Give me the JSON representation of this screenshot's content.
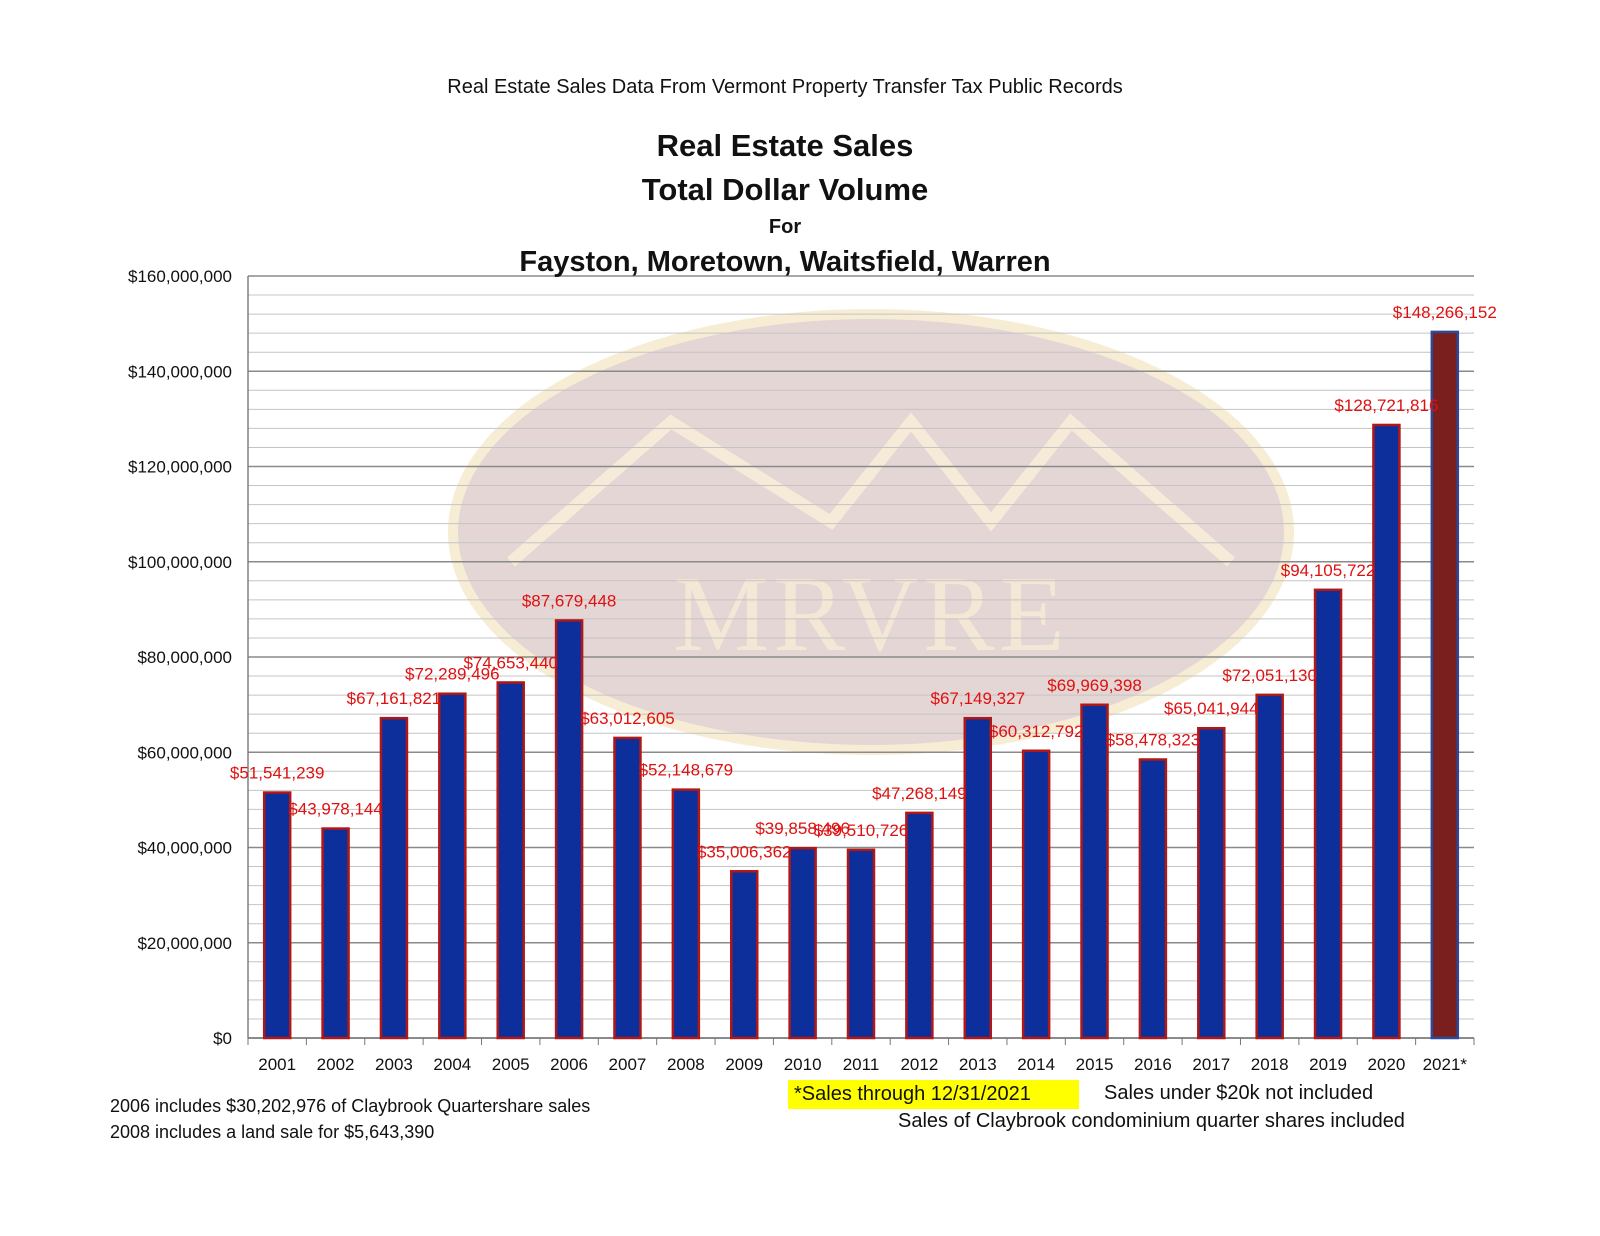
{
  "header": {
    "source": "Real Estate Sales Data From Vermont Property Transfer Tax Public Records"
  },
  "chart_data": {
    "type": "bar",
    "title_lines": [
      "Real Estate Sales",
      "Total Dollar Volume",
      "For",
      "Fayston, Moretown, Waitsfield, Warren"
    ],
    "categories": [
      "2001",
      "2002",
      "2003",
      "2004",
      "2005",
      "2006",
      "2007",
      "2008",
      "2009",
      "2010",
      "2011",
      "2012",
      "2013",
      "2014",
      "2015",
      "2016",
      "2017",
      "2018",
      "2019",
      "2020",
      "2021*"
    ],
    "values": [
      51541239,
      43978144,
      67161821,
      72289496,
      74653440,
      87679448,
      63012605,
      52148679,
      35006362,
      39858496,
      39510726,
      47268149,
      67149327,
      60312792,
      69969398,
      58478323,
      65041944,
      72051130,
      94105722,
      128721816,
      148266152
    ],
    "data_labels": [
      "$51,541,239",
      "$43,978,144",
      "$67,161,821",
      "$72,289,496",
      "$74,653,440",
      "$87,679,448",
      "$63,012,605",
      "$52,148,679",
      "$35,006,362",
      "$39,858,496",
      "$39,510,726",
      "$47,268,149",
      "$67,149,327",
      "$60,312,792",
      "$69,969,398",
      "$58,478,323",
      "$65,041,944",
      "$72,051,130",
      "$94,105,722",
      "$128,721,816",
      "$148,266,152"
    ],
    "y_ticks": [
      "$0",
      "$20,000,000",
      "$40,000,000",
      "$60,000,000",
      "$80,000,000",
      "$100,000,000",
      "$120,000,000",
      "$140,000,000",
      "$160,000,000"
    ],
    "ylim": [
      0,
      160000000
    ],
    "y_major_step": 20000000,
    "y_minor_step": 4000000,
    "grid": true,
    "legend": "none",
    "colors": {
      "bar_fill": "#0d2f9c",
      "bar_edge": "#b01818",
      "highlight_bar_fill": "#7a1e1e",
      "highlight_bar_edge": "#2a4a9c",
      "data_label": "#e01010",
      "major_grid": "#8a8a8a",
      "minor_grid": "#c4c4c4",
      "watermark": "#dcc9c6",
      "watermark_ring": "#f5e8c8"
    },
    "highlight_index": 20,
    "watermark_text": "MRVRE"
  },
  "notes": {
    "left": [
      "2006 includes $30,202,976 of Claybrook Quartershare sales",
      "2008 includes a land sale for $5,643,390"
    ],
    "highlight": "*Sales through 12/31/2021",
    "right": [
      "Sales under $20k not included",
      "Sales of Claybrook condominium quarter shares included"
    ]
  }
}
